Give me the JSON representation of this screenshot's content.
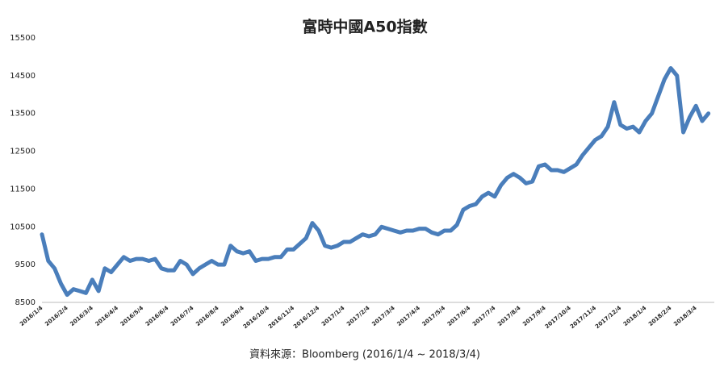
{
  "chart_data": {
    "type": "line",
    "title": "富時中國A50指數",
    "source": "資料來源：Bloomberg (2016/1/4 ~ 2018/3/4)",
    "color": "#4a7ebb",
    "categories": [
      "2016/1/4",
      null,
      null,
      null,
      "2016/2/4",
      null,
      null,
      null,
      "2016/3/4",
      null,
      null,
      null,
      "2016/4/4",
      null,
      null,
      null,
      "2016/5/4",
      null,
      null,
      null,
      "2016/6/4",
      null,
      null,
      null,
      "2016/7/4",
      null,
      null,
      null,
      "2016/8/4",
      null,
      null,
      null,
      "2016/9/4",
      null,
      null,
      null,
      "2016/10/4",
      null,
      null,
      null,
      "2016/11/4",
      null,
      null,
      null,
      "2016/12/4",
      null,
      null,
      null,
      "2017/1/4",
      null,
      null,
      null,
      "2017/2/4",
      null,
      null,
      null,
      "2017/3/4",
      null,
      null,
      null,
      "2017/4/4",
      null,
      null,
      null,
      "2017/5/4",
      null,
      null,
      null,
      "2017/6/4",
      null,
      null,
      null,
      "2017/7/4",
      null,
      null,
      null,
      "2017/8/4",
      null,
      null,
      null,
      "2017/9/4",
      null,
      null,
      null,
      "2017/10/4",
      null,
      null,
      null,
      "2017/11/4",
      null,
      null,
      null,
      "2017/12/4",
      null,
      null,
      null,
      "2018/1/4",
      null,
      null,
      null,
      "2018/2/4",
      null,
      null,
      null,
      "2018/3/4",
      null,
      null
    ],
    "values": [
      10300,
      9600,
      9400,
      9000,
      8700,
      8850,
      8800,
      8750,
      9100,
      8800,
      9400,
      9300,
      9500,
      9700,
      9600,
      9650,
      9650,
      9600,
      9650,
      9400,
      9350,
      9350,
      9600,
      9500,
      9250,
      9400,
      9500,
      9600,
      9500,
      9500,
      10000,
      9850,
      9800,
      9850,
      9600,
      9650,
      9650,
      9700,
      9700,
      9900,
      9900,
      10050,
      10200,
      10600,
      10400,
      10000,
      9950,
      10000,
      10100,
      10100,
      10200,
      10300,
      10250,
      10300,
      10500,
      10450,
      10400,
      10350,
      10400,
      10400,
      10450,
      10450,
      10350,
      10300,
      10400,
      10400,
      10550,
      10950,
      11050,
      11100,
      11300,
      11400,
      11300,
      11600,
      11800,
      11900,
      11800,
      11650,
      11700,
      12100,
      12150,
      12000,
      12000,
      11950,
      12050,
      12150,
      12400,
      12600,
      12800,
      12900,
      13150,
      13800,
      13200,
      13100,
      13150,
      13000,
      13300,
      13500,
      13950,
      14400,
      14700,
      14500,
      13000,
      13400,
      13700,
      13300,
      13500
    ],
    "ylim": [
      8500,
      15500
    ],
    "yticks": [
      8500,
      9500,
      10500,
      11500,
      12500,
      13500,
      14500,
      15500
    ],
    "grid": false
  }
}
